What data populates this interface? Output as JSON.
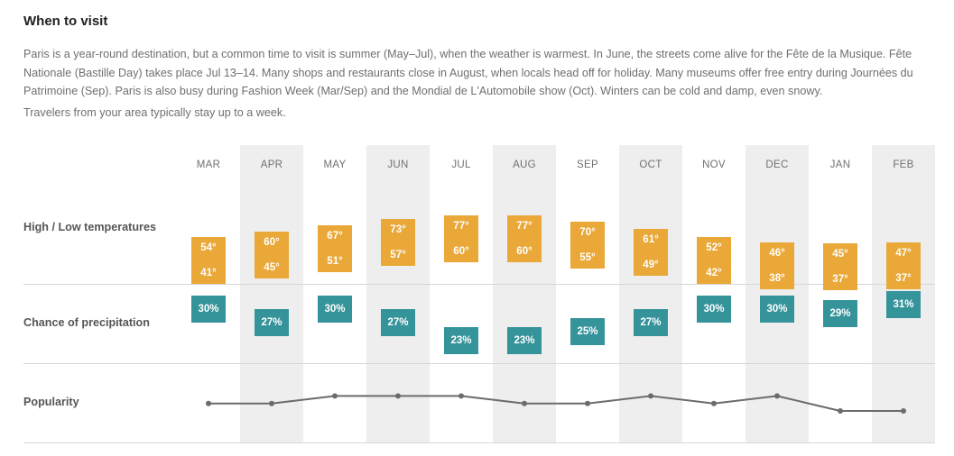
{
  "section": {
    "title": "When to visit",
    "description": "Paris is a year-round destination, but a common time to visit is summer (May–Jul), when the weather is warmest. In June, the streets come alive for the Fête de la Musique. Fête Nationale (Bastille Day) takes place Jul 13–14. Many shops and restaurants close in August, when locals head off for holiday. Many museums offer free entry during Journées du Patrimoine (Sep). Paris is also busy during Fashion Week (Mar/Sep) and the Mondial de L'Automobile show (Oct). Winters can be cold and damp, even snowy.",
    "stay_note": "Travelers from your area typically stay up to a week."
  },
  "rows": {
    "temperature_label": "High / Low temperatures",
    "precipitation_label": "Chance of precipitation",
    "popularity_label": "Popularity"
  },
  "colors": {
    "temperature": "#e9a838",
    "precipitation": "#35939a",
    "popularity_line": "#6b6b6b",
    "shaded_column": "#eeeeee"
  },
  "months": [
    {
      "label": "MAR",
      "high": "54°",
      "low": "41°",
      "precip": "30%",
      "popularity": 1
    },
    {
      "label": "APR",
      "high": "60°",
      "low": "45°",
      "precip": "27%",
      "popularity": 1
    },
    {
      "label": "MAY",
      "high": "67°",
      "low": "51°",
      "precip": "30%",
      "popularity": 2
    },
    {
      "label": "JUN",
      "high": "73°",
      "low": "57°",
      "precip": "27%",
      "popularity": 2
    },
    {
      "label": "JUL",
      "high": "77°",
      "low": "60°",
      "precip": "23%",
      "popularity": 2
    },
    {
      "label": "AUG",
      "high": "77°",
      "low": "60°",
      "precip": "23%",
      "popularity": 1
    },
    {
      "label": "SEP",
      "high": "70°",
      "low": "55°",
      "precip": "25%",
      "popularity": 1
    },
    {
      "label": "OCT",
      "high": "61°",
      "low": "49°",
      "precip": "27%",
      "popularity": 2
    },
    {
      "label": "NOV",
      "high": "52°",
      "low": "42°",
      "precip": "30%",
      "popularity": 1
    },
    {
      "label": "DEC",
      "high": "46°",
      "low": "38°",
      "precip": "30%",
      "popularity": 2
    },
    {
      "label": "JAN",
      "high": "45°",
      "low": "37°",
      "precip": "29%",
      "popularity": 0
    },
    {
      "label": "FEB",
      "high": "47°",
      "low": "37°",
      "precip": "31%",
      "popularity": 0
    }
  ]
}
